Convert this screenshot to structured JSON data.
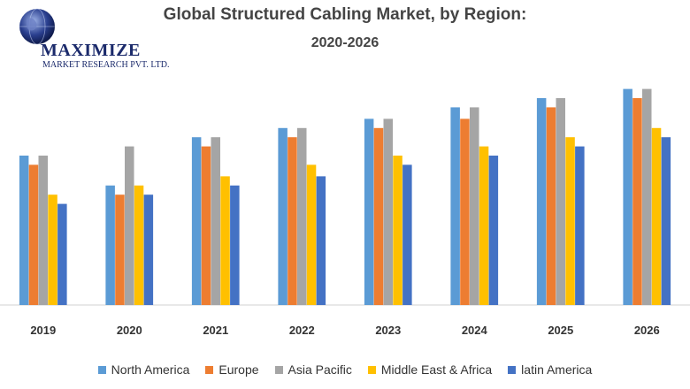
{
  "logo": {
    "name": "MAXIMIZE",
    "subtitle": "MARKET RESEARCH PVT. LTD."
  },
  "chart_data": {
    "type": "bar",
    "title": "Global Structured Cabling Market, by Region:",
    "subtitle": "2020-2026",
    "xlabel": "",
    "ylabel": "",
    "ylim": [
      0,
      10
    ],
    "grid": false,
    "legend_position": "bottom",
    "categories": [
      "2019",
      "2020",
      "2021",
      "2022",
      "2023",
      "2024",
      "2025",
      "2026"
    ],
    "series": [
      {
        "name": "North America",
        "color": "#5b9bd5",
        "values": [
          6.5,
          5.2,
          7.3,
          7.7,
          8.1,
          8.6,
          9.0,
          9.4
        ]
      },
      {
        "name": "Europe",
        "color": "#ed7d31",
        "values": [
          6.1,
          4.8,
          6.9,
          7.3,
          7.7,
          8.1,
          8.6,
          9.0
        ]
      },
      {
        "name": "Asia Pacific",
        "color": "#a5a5a5",
        "values": [
          6.5,
          6.9,
          7.3,
          7.7,
          8.1,
          8.6,
          9.0,
          9.4
        ]
      },
      {
        "name": "Middle East & Africa",
        "color": "#ffc000",
        "values": [
          4.8,
          5.2,
          5.6,
          6.1,
          6.5,
          6.9,
          7.3,
          7.7
        ]
      },
      {
        "name": "latin America",
        "color": "#4472c4",
        "values": [
          4.4,
          4.8,
          5.2,
          5.6,
          6.1,
          6.5,
          6.9,
          7.3
        ]
      }
    ]
  }
}
